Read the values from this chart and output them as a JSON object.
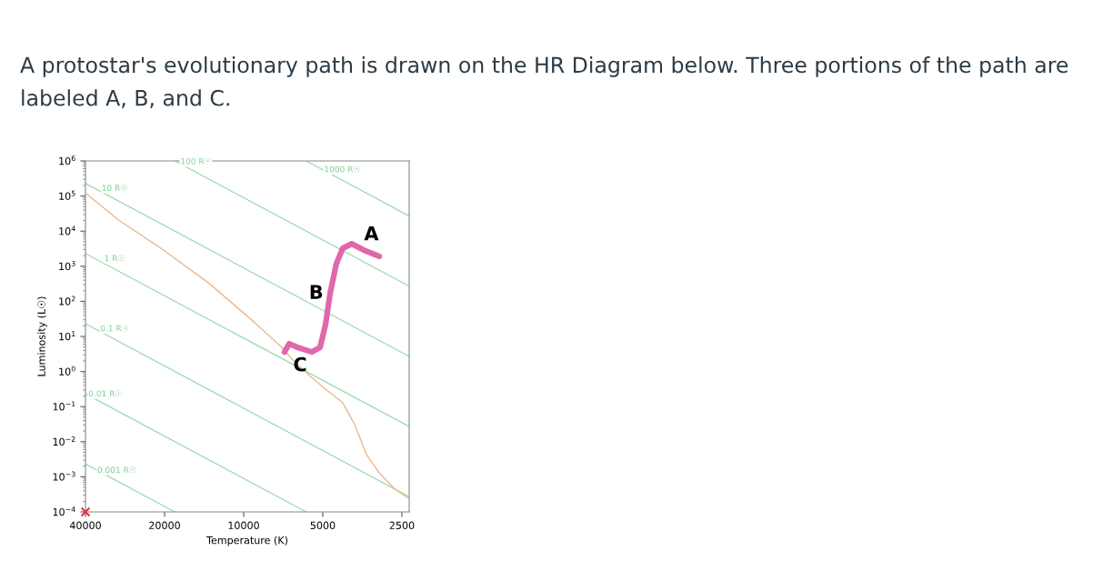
{
  "chart_data": {
    "type": "line",
    "title": "A protostar's evolutionary path is drawn on the HR Diagram below. Three portions of the path are labeled A, B, and C.",
    "xlabel": "Temperature (K)",
    "ylabel": "Luminosity (L☉)",
    "log": "xy",
    "grid": false,
    "legend": false,
    "xlim": [
      40000,
      2345
    ],
    "xticks": [
      40000,
      20000,
      10000,
      5000,
      2500
    ],
    "ylim": [
      0.0001,
      1000000
    ],
    "yticks": [
      {
        "value": 0.0001,
        "label": "10$^{−4}$"
      },
      {
        "value": 0.001,
        "label": "10$^{−3}$"
      },
      {
        "value": 0.01,
        "label": "10$^{−2}$"
      },
      {
        "value": 0.1,
        "label": "10$^{−1}$"
      },
      {
        "value": 1,
        "label": "10$^{0}$"
      },
      {
        "value": 10,
        "label": "10$^{1}$"
      },
      {
        "value": 100,
        "label": "10$^{2}$"
      },
      {
        "value": 1000,
        "label": "10$^{3}$"
      },
      {
        "value": 10000,
        "label": "10$^{4}$"
      },
      {
        "value": 100000,
        "label": "10$^{5}$"
      },
      {
        "value": 1000000,
        "label": "10$^{6}$"
      }
    ],
    "series": [
      {
        "name": "0.001 R☉",
        "color": "#a3dcb5",
        "type": "line",
        "x": [
          40000,
          18270
        ],
        "values": [
          0.0023,
          0.0001
        ]
      },
      {
        "name": "0.01 R☉",
        "color": "#a3dcb5",
        "type": "line",
        "x": [
          40000,
          5778
        ],
        "values": [
          0.23,
          0.0001
        ]
      },
      {
        "name": "0.1 R☉",
        "color": "#a3dcb5",
        "type": "line",
        "x": [
          40000,
          2345
        ],
        "values": [
          23,
          0.00027
        ]
      },
      {
        "name": "1 R☉",
        "color": "#a3dcb5",
        "type": "line",
        "x": [
          40000,
          2345
        ],
        "values": [
          2300,
          0.027
        ]
      },
      {
        "name": "10 R☉",
        "color": "#a3dcb5",
        "type": "line",
        "x": [
          40000,
          2345
        ],
        "values": [
          230000,
          2.7
        ]
      },
      {
        "name": "100 R☉",
        "color": "#a3dcb5",
        "type": "line",
        "x": [
          18270,
          2345
        ],
        "values": [
          1000000,
          270
        ]
      },
      {
        "name": "1000 R☉",
        "color": "#a3dcb5",
        "type": "line",
        "x": [
          5778,
          2345
        ],
        "values": [
          1000000,
          27000
        ]
      },
      {
        "color": "#ebb98f",
        "x": [
          39700,
          30000,
          20200,
          13500,
          9090,
          7160,
          6450,
          5630,
          4920,
          4200,
          3780,
          3410,
          3050,
          2680,
          2370
        ],
        "values": [
          117000,
          21000,
          2900,
          320,
          25,
          4.9,
          2.0,
          0.78,
          0.33,
          0.13,
          0.031,
          0.0043,
          0.0013,
          0.00047,
          0.00025
        ]
      },
      {
        "color": "#e068aa",
        "x": [
          6990,
          6710,
          6100,
          5500,
          5120,
          4880,
          4690,
          4440,
          4200,
          3880,
          3490,
          3050
        ],
        "values": [
          3.6,
          6.2,
          4.6,
          3.6,
          4.9,
          22,
          166,
          1170,
          3240,
          4360,
          2880,
          1910
        ]
      },
      {
        "color": "#e8333a",
        "type": "scatter",
        "marker": "cross",
        "x": [
          40000
        ],
        "values": [
          0.0001
        ]
      }
    ],
    "annotations": [
      {
        "text": "A",
        "x": 3490,
        "y": 2880
      },
      {
        "text": "B",
        "x": 4690,
        "y": 166
      },
      {
        "text": "C",
        "x": 6100,
        "y": 4.6
      }
    ]
  }
}
